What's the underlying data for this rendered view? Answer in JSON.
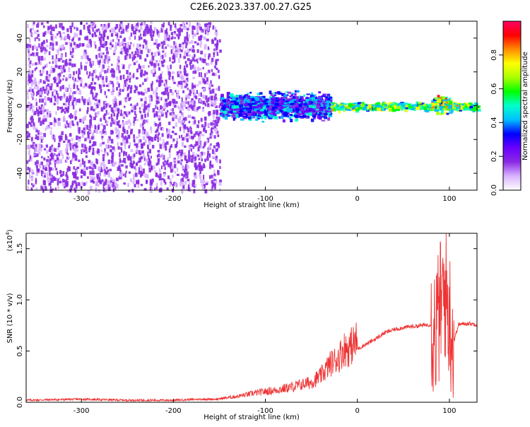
{
  "title": "C2E6.2023.337.00.27.G25",
  "chart_data": [
    {
      "type": "heatmap",
      "xlabel": "Height of straight line (km)",
      "ylabel": "Frequency (Hz)",
      "xlim": [
        -360,
        130
      ],
      "ylim": [
        -50,
        50
      ],
      "xticks": [
        -300,
        -200,
        -100,
        0,
        100
      ],
      "yticks": [
        -40,
        -20,
        0,
        20,
        40
      ],
      "colorbar": {
        "label": "Normalized spectral amplitude",
        "range": [
          0.0,
          1.0
        ],
        "ticks": [
          0.0,
          0.2,
          0.4,
          0.6,
          0.8
        ],
        "colormap": [
          "#ffffff",
          "#d9b3ff",
          "#8a2be2",
          "#6a00ff",
          "#0000ff",
          "#00bfff",
          "#00ffcc",
          "#00ff00",
          "#aaff00",
          "#ffff00",
          "#ff8c00",
          "#ff0000",
          "#ff0066"
        ]
      },
      "regions": [
        {
          "x_range": [
            -360,
            -150
          ],
          "freq_range": [
            -50,
            50
          ],
          "amplitude": 0.05,
          "pattern": "speckle"
        },
        {
          "x_range": [
            -150,
            -30
          ],
          "freq_range": [
            -10,
            10
          ],
          "amplitude": 0.3,
          "pattern": "blob"
        },
        {
          "x_range": [
            -30,
            130
          ],
          "freq_range": [
            -3,
            3
          ],
          "amplitude": 0.5,
          "pattern": "band"
        },
        {
          "x_range": [
            80,
            100
          ],
          "freq_range": [
            -5,
            8
          ],
          "amplitude": 0.8,
          "pattern": "burst"
        }
      ]
    },
    {
      "type": "line",
      "xlabel": "Height of straight line (km)",
      "ylabel": "SNR (10 * v/v)",
      "yscale_label": "(x10",
      "yscale_exponent": "4",
      "yscale_suffix": ")",
      "xlim": [
        -360,
        130
      ],
      "ylim": [
        0.0,
        1.65
      ],
      "xticks": [
        -300,
        -200,
        -100,
        0,
        100
      ],
      "yticks": [
        0.0,
        0.5,
        1.0,
        1.5
      ],
      "series_color": "#ee3333",
      "x": [
        -360,
        -300,
        -250,
        -200,
        -170,
        -150,
        -130,
        -110,
        -90,
        -70,
        -50,
        -40,
        -30,
        -20,
        -15,
        -10,
        0,
        10,
        20,
        30,
        40,
        50,
        60,
        70,
        80,
        85,
        90,
        95,
        100,
        105,
        110,
        120,
        130
      ],
      "y": [
        0.02,
        0.03,
        0.02,
        0.02,
        0.03,
        0.03,
        0.05,
        0.08,
        0.1,
        0.13,
        0.17,
        0.22,
        0.32,
        0.38,
        0.45,
        0.45,
        0.52,
        0.57,
        0.62,
        0.68,
        0.71,
        0.73,
        0.74,
        0.75,
        0.76,
        0.7,
        0.9,
        1.1,
        0.85,
        0.6,
        0.76,
        0.77,
        0.76
      ]
    }
  ]
}
